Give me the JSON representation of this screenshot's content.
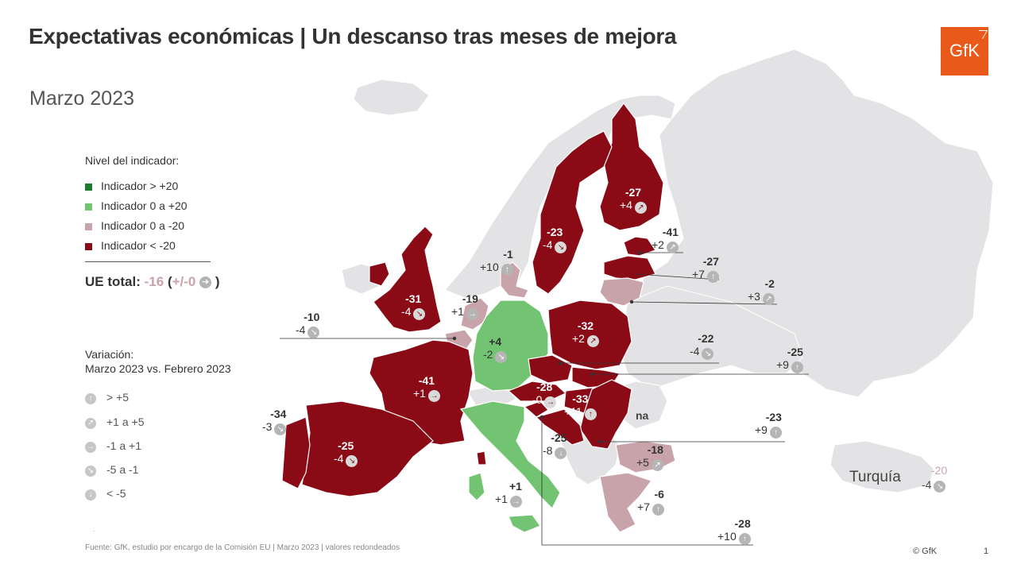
{
  "header": {
    "title": "Expectativas económicas | Un descanso tras meses de mejora",
    "subtitle": "Marzo 2023",
    "logo_text": "GfK"
  },
  "colors": {
    "strong_positive": "#1e7a2e",
    "positive": "#72c472",
    "negative": "#c9a3aa",
    "strong_negative": "#8a0a16",
    "non_eu": "#e3e3e5",
    "na": "#e3e3e5"
  },
  "legend": {
    "title": "Nivel del indicador:",
    "items": [
      {
        "label": "Indicador > +20",
        "color": "#1e7a2e"
      },
      {
        "label": "Indicador 0 a +20",
        "color": "#72c472"
      },
      {
        "label": "Indicador 0 a -20",
        "color": "#c9a3aa"
      },
      {
        "label": "Indicador < -20",
        "color": "#8a0a16"
      }
    ]
  },
  "eu_total": {
    "label": "UE total:",
    "value": "-16",
    "open": "(",
    "change": "+/-0",
    "close": ")",
    "arrow_icon": "arrow-right-icon"
  },
  "variation": {
    "title_line1": "Variación:",
    "title_line2": "Marzo 2023 vs. Febrero 2023",
    "items": [
      {
        "icon": "arrow-up-icon",
        "label": "> +5"
      },
      {
        "icon": "arrow-up-right-icon",
        "label": "+1 a +5"
      },
      {
        "icon": "arrow-right-icon",
        "label": "-1 a +1"
      },
      {
        "icon": "arrow-down-right-icon",
        "label": "-5 a -1"
      },
      {
        "icon": "arrow-down-icon",
        "label": "< -5"
      }
    ],
    "footnote_dot": "."
  },
  "countries": [
    {
      "id": "finland",
      "value": "-27",
      "change": "+4",
      "trend": "up-right",
      "category": "strong_negative"
    },
    {
      "id": "sweden",
      "value": "-23",
      "change": "-4",
      "trend": "down-right",
      "category": "strong_negative"
    },
    {
      "id": "estonia",
      "value": "-41",
      "change": "+2",
      "trend": "up-right",
      "category": "strong_negative"
    },
    {
      "id": "latvia",
      "value": "-27",
      "change": "+7",
      "trend": "up",
      "category": "strong_negative"
    },
    {
      "id": "lithuania",
      "value": "-2",
      "change": "+3",
      "trend": "up-right",
      "category": "negative"
    },
    {
      "id": "denmark",
      "value": "-1",
      "change": "+10",
      "trend": "up",
      "category": "negative"
    },
    {
      "id": "netherlands",
      "value": "-19",
      "change": "+1",
      "trend": "right",
      "category": "negative"
    },
    {
      "id": "ireland_uk",
      "value": "-31",
      "change": "-4",
      "trend": "down-right",
      "category": "strong_negative"
    },
    {
      "id": "belgium",
      "value": "-10",
      "change": "-4",
      "trend": "down-right",
      "category": "negative"
    },
    {
      "id": "germany",
      "value": "+4",
      "change": "-2",
      "trend": "down-right",
      "category": "positive"
    },
    {
      "id": "poland",
      "value": "-32",
      "change": "+2",
      "trend": "up-right",
      "category": "strong_negative"
    },
    {
      "id": "czechia",
      "value": "-22",
      "change": "-4",
      "trend": "down-right",
      "category": "strong_negative"
    },
    {
      "id": "slovakia",
      "value": "-25",
      "change": "+9",
      "trend": "up",
      "category": "strong_negative"
    },
    {
      "id": "france",
      "value": "-41",
      "change": "+1",
      "trend": "right",
      "category": "strong_negative"
    },
    {
      "id": "austria",
      "value": "-28",
      "change": "-0",
      "trend": "right",
      "category": "strong_negative"
    },
    {
      "id": "hungary",
      "value": "-33",
      "change": "+11",
      "trend": "up",
      "category": "strong_negative"
    },
    {
      "id": "portugal",
      "value": "-34",
      "change": "-3",
      "trend": "down-right",
      "category": "strong_negative"
    },
    {
      "id": "spain",
      "value": "-25",
      "change": "-4",
      "trend": "down-right",
      "category": "strong_negative"
    },
    {
      "id": "croatia",
      "value": "-25",
      "change": "-8",
      "trend": "down",
      "category": "strong_negative"
    },
    {
      "id": "romania",
      "value": "-23",
      "change": "+9",
      "trend": "up",
      "category": "strong_negative"
    },
    {
      "id": "bulgaria",
      "value": "-18",
      "change": "+5",
      "trend": "up-right",
      "category": "negative"
    },
    {
      "id": "greece",
      "value": "-6",
      "change": "+7",
      "trend": "up",
      "category": "negative"
    },
    {
      "id": "italy",
      "value": "+1",
      "change": "+1",
      "trend": "right",
      "category": "positive"
    },
    {
      "id": "slovenia",
      "value": "-28",
      "change": "+10",
      "trend": "up",
      "category": "strong_negative"
    }
  ],
  "na_label": "na",
  "turkey": {
    "name": "Turquía",
    "value": "-20",
    "change": "-4",
    "trend": "down-right"
  },
  "footer": {
    "source": "Fuente: GfK, estudio por encargo de la Comisión  EU  | Marzo 2023 | valores redondeados",
    "copyright": "© GfK",
    "page": "1"
  }
}
